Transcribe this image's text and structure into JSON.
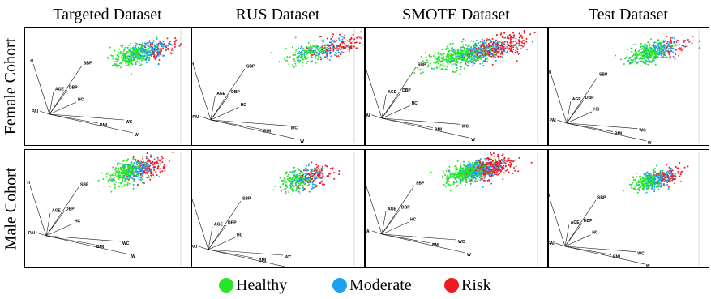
{
  "chart_data": {
    "type": "scatter",
    "columns": [
      "Targeted Dataset",
      "RUS Dataset",
      "SMOTE Dataset",
      "Test Dataset"
    ],
    "rows": [
      "Female Cohort",
      "Male Cohort"
    ],
    "classes": [
      {
        "name": "Healthy",
        "color": "#27e627"
      },
      {
        "name": "Moderate",
        "color": "#1f9ff0"
      },
      {
        "name": "Risk",
        "color": "#ee1b23"
      }
    ],
    "loadings": [
      "H",
      "SBP",
      "AGE",
      "DBP",
      "HC",
      "PAI",
      "WC",
      "BMI",
      "W"
    ]
  }
}
